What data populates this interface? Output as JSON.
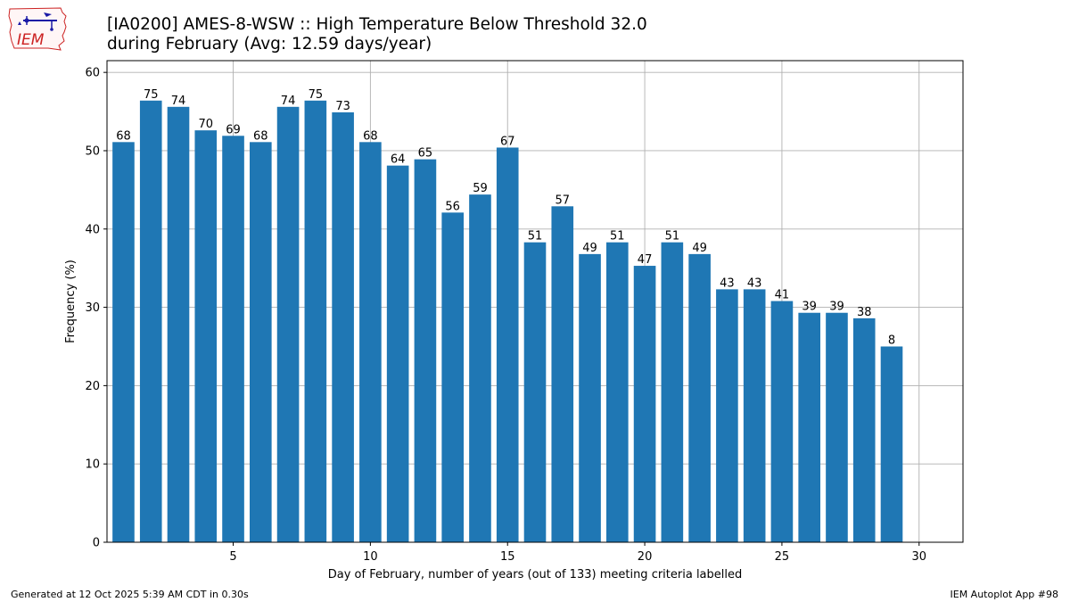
{
  "logo": {
    "text": "IEM"
  },
  "title": {
    "line1": "[IA0200] AMES-8-WSW :: High Temperature Below Threshold 32.0",
    "line2": "during February (Avg: 12.59 days/year)"
  },
  "footer": {
    "left": "Generated at 12 Oct 2025 5:39 AM CDT in 0.30s",
    "right": "IEM Autoplot App #98"
  },
  "colors": {
    "bar": "#1f77b4",
    "grid": "#b0b0b0",
    "logo_red": "#cc2222",
    "logo_blue": "#1a1aa6"
  },
  "chart_data": {
    "type": "bar",
    "title": "[IA0200] AMES-8-WSW :: High Temperature Below Threshold 32.0 during February (Avg: 12.59 days/year)",
    "xlabel": "Day of February, number of years (out of 133) meeting criteria labelled",
    "ylabel": "Frequency (%)",
    "xlim": [
      0.4,
      31.6
    ],
    "ylim": [
      0,
      61.5
    ],
    "xticks": [
      5,
      10,
      15,
      20,
      25,
      30
    ],
    "yticks": [
      0,
      10,
      20,
      30,
      40,
      50,
      60
    ],
    "grid": true,
    "total_years": 133,
    "days": [
      1,
      2,
      3,
      4,
      5,
      6,
      7,
      8,
      9,
      10,
      11,
      12,
      13,
      14,
      15,
      16,
      17,
      18,
      19,
      20,
      21,
      22,
      23,
      24,
      25,
      26,
      27,
      28,
      29
    ],
    "counts": [
      68,
      75,
      74,
      70,
      69,
      68,
      74,
      75,
      73,
      68,
      64,
      65,
      56,
      59,
      67,
      51,
      57,
      49,
      51,
      47,
      51,
      49,
      43,
      43,
      41,
      39,
      39,
      38,
      8
    ],
    "values": [
      51.1,
      56.4,
      55.6,
      52.6,
      51.9,
      51.1,
      55.6,
      56.4,
      54.9,
      51.1,
      48.1,
      48.9,
      42.1,
      44.4,
      50.4,
      38.3,
      42.9,
      36.8,
      38.3,
      35.3,
      38.3,
      36.8,
      32.3,
      32.3,
      30.8,
      29.3,
      29.3,
      28.6,
      25.0
    ],
    "bar_labels": [
      "68",
      "75",
      "74",
      "70",
      "69",
      "68",
      "74",
      "75",
      "73",
      "68",
      "64",
      "65",
      "56",
      "59",
      "67",
      "51",
      "57",
      "49",
      "51",
      "47",
      "51",
      "49",
      "43",
      "43",
      "41",
      "39",
      "39",
      "38",
      "8"
    ]
  }
}
